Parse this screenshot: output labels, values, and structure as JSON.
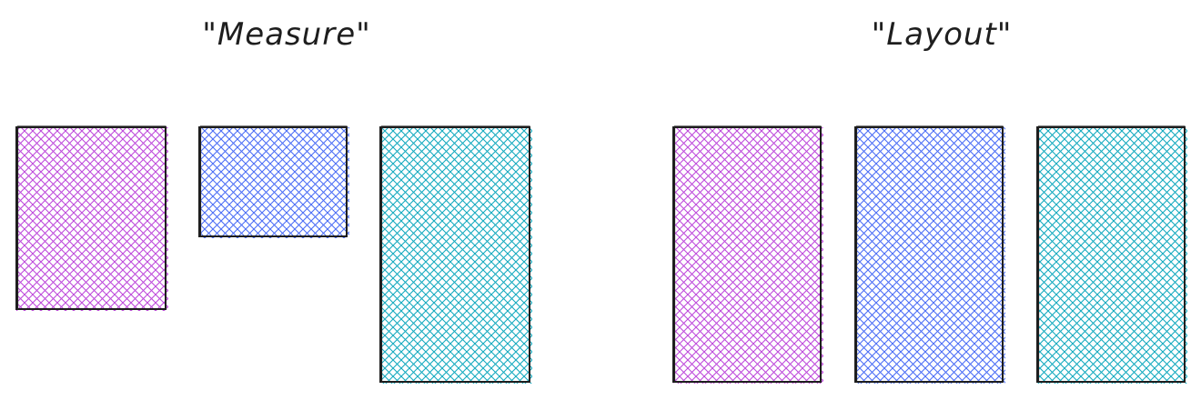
{
  "groups": [
    {
      "title": "\"Measure\"",
      "boxes": [
        {
          "color": "#be4bdb"
        },
        {
          "color": "#4c6ef5"
        },
        {
          "color": "#15aabf"
        }
      ]
    },
    {
      "title": "\"Layout\"",
      "boxes": [
        {
          "color": "#be4bdb"
        },
        {
          "color": "#4c6ef5"
        },
        {
          "color": "#15aabf"
        }
      ]
    }
  ],
  "stroke_color": "#1e1e1e",
  "fill_style": "cross-hatch"
}
